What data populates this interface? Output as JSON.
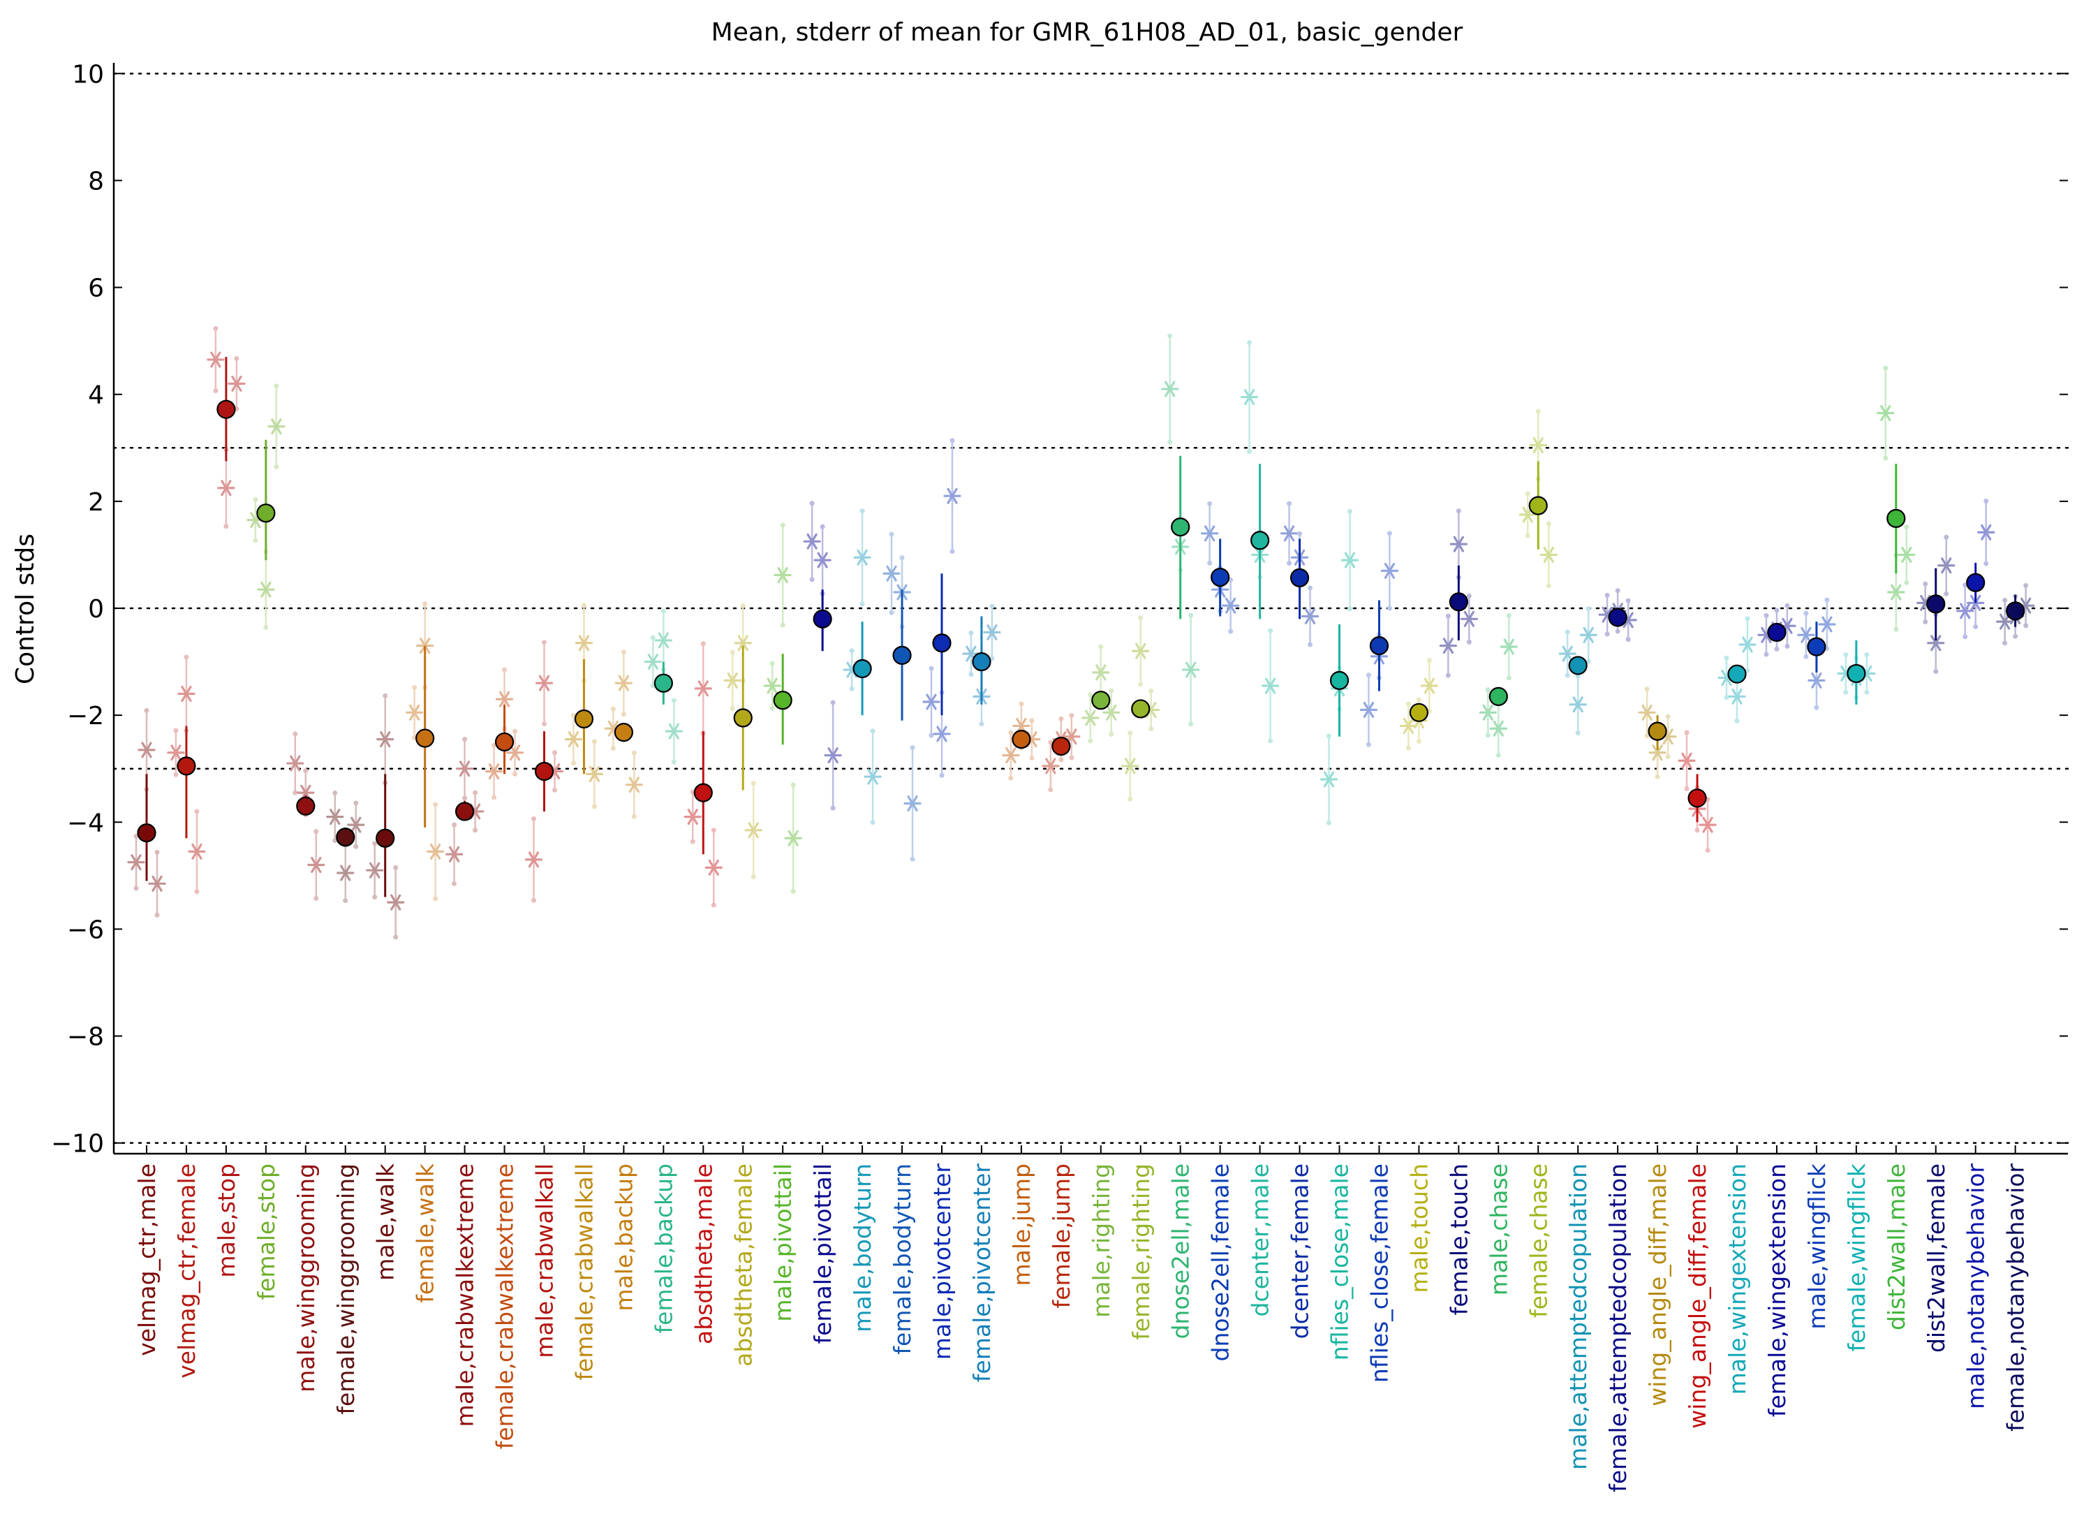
{
  "chart_data": {
    "type": "scatter",
    "title": "Mean, stderr of mean for GMR_61H08_AD_01, basic_gender",
    "xlabel": "",
    "ylabel": "Control stds",
    "ylim": [
      -10.2,
      10.2
    ],
    "yticks": [
      10,
      8,
      6,
      4,
      2,
      0,
      -2,
      -4,
      -6,
      -8,
      -10
    ],
    "dotted_reference_lines": [
      10,
      3,
      0,
      -3,
      -10
    ],
    "grid": false,
    "categories": [
      {
        "label": "velmag_ctr,male",
        "color": "#7a0a0a",
        "mean": -4.2,
        "se_lo": -5.1,
        "se_hi": -3.1,
        "reps": [
          -4.75,
          -2.65,
          -5.15
        ]
      },
      {
        "label": "velmag_ctr,female",
        "color": "#b3180f",
        "mean": -2.95,
        "se_lo": -4.3,
        "se_hi": -2.2,
        "reps": [
          -2.7,
          -1.6,
          -4.55
        ]
      },
      {
        "label": "male,stop",
        "color": "#b01515",
        "mean": 3.72,
        "se_lo": 2.75,
        "se_hi": 4.7,
        "reps": [
          4.65,
          2.25,
          4.2
        ]
      },
      {
        "label": "female,stop",
        "color": "#6fae2a",
        "mean": 1.78,
        "se_lo": 0.9,
        "se_hi": 3.15,
        "reps": [
          1.65,
          0.35,
          3.4
        ]
      },
      {
        "label": "male,winggrooming",
        "color": "#8f1010",
        "mean": -3.7,
        "se_lo": -3.85,
        "se_hi": -3.5,
        "reps": [
          -2.9,
          -3.45,
          -4.8
        ]
      },
      {
        "label": "female,winggrooming",
        "color": "#5a1010",
        "mean": -4.28,
        "se_lo": -4.4,
        "se_hi": -4.1,
        "reps": [
          -3.9,
          -4.95,
          -4.05
        ]
      },
      {
        "label": "male,walk",
        "color": "#6a0c0c",
        "mean": -4.3,
        "se_lo": -5.4,
        "se_hi": -3.1,
        "reps": [
          -4.9,
          -2.45,
          -5.5
        ]
      },
      {
        "label": "female,walk",
        "color": "#c67015",
        "mean": -2.43,
        "se_lo": -4.1,
        "se_hi": -0.7,
        "reps": [
          -1.95,
          -0.7,
          -4.55
        ]
      },
      {
        "label": "male,crabwalkextreme",
        "color": "#8c0f0f",
        "mean": -3.8,
        "se_lo": -3.95,
        "se_hi": -3.6,
        "reps": [
          -4.6,
          -3.0,
          -3.8
        ]
      },
      {
        "label": "female,crabwalkextreme",
        "color": "#c34c10",
        "mean": -2.5,
        "se_lo": -3.1,
        "se_hi": -1.8,
        "reps": [
          -3.05,
          -1.7,
          -2.7
        ]
      },
      {
        "label": "male,crabwalkall",
        "color": "#b3140f",
        "mean": -3.05,
        "se_lo": -3.8,
        "se_hi": -2.3,
        "reps": [
          -4.7,
          -1.4,
          -3.05
        ]
      },
      {
        "label": "female,crabwalkall",
        "color": "#bf8a10",
        "mean": -2.07,
        "se_lo": -3.1,
        "se_hi": -0.95,
        "reps": [
          -2.45,
          -0.65,
          -3.1
        ]
      },
      {
        "label": "male,backup",
        "color": "#c47e12",
        "mean": -2.32,
        "se_lo": -2.5,
        "se_hi": -2.15,
        "reps": [
          -2.25,
          -1.4,
          -3.3
        ]
      },
      {
        "label": "female,backup",
        "color": "#2bb58a",
        "mean": -1.4,
        "se_lo": -1.8,
        "se_hi": -1.0,
        "reps": [
          -1.0,
          -0.6,
          -2.3
        ]
      },
      {
        "label": "absdtheta,male",
        "color": "#c01212",
        "mean": -3.45,
        "se_lo": -4.6,
        "se_hi": -2.3,
        "reps": [
          -3.9,
          -1.5,
          -4.85
        ]
      },
      {
        "label": "absdtheta,female",
        "color": "#b3a81a",
        "mean": -2.05,
        "se_lo": -3.4,
        "se_hi": -0.7,
        "reps": [
          -1.35,
          -0.65,
          -4.15
        ]
      },
      {
        "label": "male,pivottail",
        "color": "#57b52a",
        "mean": -1.72,
        "se_lo": -2.55,
        "se_hi": -0.85,
        "reps": [
          -1.45,
          0.62,
          -4.3
        ]
      },
      {
        "label": "female,pivottail",
        "color": "#0b0a8f",
        "mean": -0.2,
        "se_lo": -0.8,
        "se_hi": 0.35,
        "reps": [
          1.25,
          0.9,
          -2.75
        ]
      },
      {
        "label": "male,bodyturn",
        "color": "#1598b8",
        "mean": -1.13,
        "se_lo": -2.0,
        "se_hi": -0.25,
        "reps": [
          -1.15,
          0.95,
          -3.15
        ]
      },
      {
        "label": "female,bodyturn",
        "color": "#1256b5",
        "mean": -0.88,
        "se_lo": -2.1,
        "se_hi": 0.35,
        "reps": [
          0.65,
          0.3,
          -3.65
        ]
      },
      {
        "label": "male,pivotcenter",
        "color": "#0d2bb3",
        "mean": -0.65,
        "se_lo": -2.0,
        "se_hi": 0.65,
        "reps": [
          -1.75,
          -2.35,
          2.1
        ]
      },
      {
        "label": "female,pivotcenter",
        "color": "#147fb8",
        "mean": -1.0,
        "se_lo": -1.8,
        "se_hi": -0.15,
        "reps": [
          -0.85,
          -1.65,
          -0.45
        ]
      },
      {
        "label": "male,jump",
        "color": "#c35f0f",
        "mean": -2.45,
        "se_lo": -2.6,
        "se_hi": -2.3,
        "reps": [
          -2.75,
          -2.2,
          -2.45
        ]
      },
      {
        "label": "female,jump",
        "color": "#b8270d",
        "mean": -2.58,
        "se_lo": -2.7,
        "se_hi": -2.45,
        "reps": [
          -2.95,
          -2.45,
          -2.4
        ]
      },
      {
        "label": "male,righting",
        "color": "#79b53a",
        "mean": -1.72,
        "se_lo": -1.85,
        "se_hi": -1.6,
        "reps": [
          -2.05,
          -1.2,
          -1.95
        ]
      },
      {
        "label": "female,righting",
        "color": "#95b52a",
        "mean": -1.88,
        "se_lo": -2.0,
        "se_hi": -1.75,
        "reps": [
          -2.95,
          -0.8,
          -1.9
        ]
      },
      {
        "label": "dnose2ell,male",
        "color": "#2fb572",
        "mean": 1.52,
        "se_lo": -0.2,
        "se_hi": 2.85,
        "reps": [
          4.1,
          1.15,
          -1.15
        ]
      },
      {
        "label": "dnose2ell,female",
        "color": "#0b3cb3",
        "mean": 0.58,
        "se_lo": -0.15,
        "se_hi": 1.3,
        "reps": [
          1.4,
          0.35,
          0.05
        ]
      },
      {
        "label": "dcenter,male",
        "color": "#1fb59e",
        "mean": 1.27,
        "se_lo": -0.2,
        "se_hi": 2.7,
        "reps": [
          3.95,
          1.0,
          -1.45
        ]
      },
      {
        "label": "dcenter,female",
        "color": "#0b2ba6",
        "mean": 0.57,
        "se_lo": -0.2,
        "se_hi": 1.3,
        "reps": [
          1.4,
          0.95,
          -0.15
        ]
      },
      {
        "label": "nflies_close,male",
        "color": "#18b5a0",
        "mean": -1.35,
        "se_lo": -2.4,
        "se_hi": -0.3,
        "reps": [
          -3.2,
          -1.5,
          0.9
        ]
      },
      {
        "label": "nflies_close,female",
        "color": "#0d3ab3",
        "mean": -0.7,
        "se_lo": -1.55,
        "se_hi": 0.15,
        "reps": [
          -1.9,
          -0.9,
          0.7
        ]
      },
      {
        "label": "male,touch",
        "color": "#b5b012",
        "mean": -1.95,
        "se_lo": -2.1,
        "se_hi": -1.8,
        "reps": [
          -2.2,
          -2.1,
          -1.45
        ]
      },
      {
        "label": "female,touch",
        "color": "#0b0a7a",
        "mean": 0.12,
        "se_lo": -0.6,
        "se_hi": 0.8,
        "reps": [
          -0.7,
          1.2,
          -0.2
        ]
      },
      {
        "label": "male,chase",
        "color": "#2fb560",
        "mean": -1.65,
        "se_lo": -1.75,
        "se_hi": -1.55,
        "reps": [
          -1.95,
          -2.25,
          -0.72
        ]
      },
      {
        "label": "female,chase",
        "color": "#9fb51a",
        "mean": 1.92,
        "se_lo": 1.1,
        "se_hi": 2.75,
        "reps": [
          1.75,
          3.05,
          1.0
        ]
      },
      {
        "label": "male,attemptedcopulation",
        "color": "#1293b3",
        "mean": -1.07,
        "se_lo": -1.2,
        "se_hi": -0.95,
        "reps": [
          -0.85,
          -1.8,
          -0.5
        ]
      },
      {
        "label": "female,attemptedcopulation",
        "color": "#0b0a85",
        "mean": -0.17,
        "se_lo": -0.25,
        "se_hi": -0.1,
        "reps": [
          -0.12,
          -0.05,
          -0.22
        ]
      },
      {
        "label": "wing_angle_diff,male",
        "color": "#b58a10",
        "mean": -2.3,
        "se_lo": -2.65,
        "se_hi": -2.0,
        "reps": [
          -1.95,
          -2.7,
          -2.4
        ]
      },
      {
        "label": "wing_angle_diff,female",
        "color": "#c40f0f",
        "mean": -3.55,
        "se_lo": -4.0,
        "se_hi": -3.1,
        "reps": [
          -2.85,
          -3.75,
          -4.05
        ]
      },
      {
        "label": "male,wingextension",
        "color": "#15a8b8",
        "mean": -1.23,
        "se_lo": -1.35,
        "se_hi": -1.1,
        "reps": [
          -1.3,
          -1.65,
          -0.68
        ]
      },
      {
        "label": "female,wingextension",
        "color": "#0b0a95",
        "mean": -0.45,
        "se_lo": -0.5,
        "se_hi": -0.4,
        "reps": [
          -0.5,
          -0.4,
          -0.33
        ]
      },
      {
        "label": "male,wingflick",
        "color": "#0d3cb8",
        "mean": -0.72,
        "se_lo": -1.2,
        "se_hi": -0.25,
        "reps": [
          -0.5,
          -1.35,
          -0.3
        ]
      },
      {
        "label": "female,wingflick",
        "color": "#12b0b3",
        "mean": -1.22,
        "se_lo": -1.8,
        "se_hi": -0.6,
        "reps": [
          -1.22,
          -1.3,
          -1.22
        ]
      },
      {
        "label": "dist2wall,male",
        "color": "#3fb53a",
        "mean": 1.68,
        "se_lo": 0.65,
        "se_hi": 2.7,
        "reps": [
          3.65,
          0.3,
          1.0
        ]
      },
      {
        "label": "dist2wall,female",
        "color": "#0b0a6a",
        "mean": 0.08,
        "se_lo": -0.6,
        "se_hi": 0.75,
        "reps": [
          0.1,
          -0.65,
          0.8
        ]
      },
      {
        "label": "male,notanybehavior",
        "color": "#0b14a8",
        "mean": 0.48,
        "se_lo": 0.1,
        "se_hi": 0.85,
        "reps": [
          -0.05,
          0.1,
          1.42
        ]
      },
      {
        "label": "female,notanybehavior",
        "color": "#0b0a5a",
        "mean": -0.05,
        "se_lo": -0.35,
        "se_hi": 0.25,
        "reps": [
          -0.25,
          -0.15,
          0.05
        ]
      }
    ]
  }
}
